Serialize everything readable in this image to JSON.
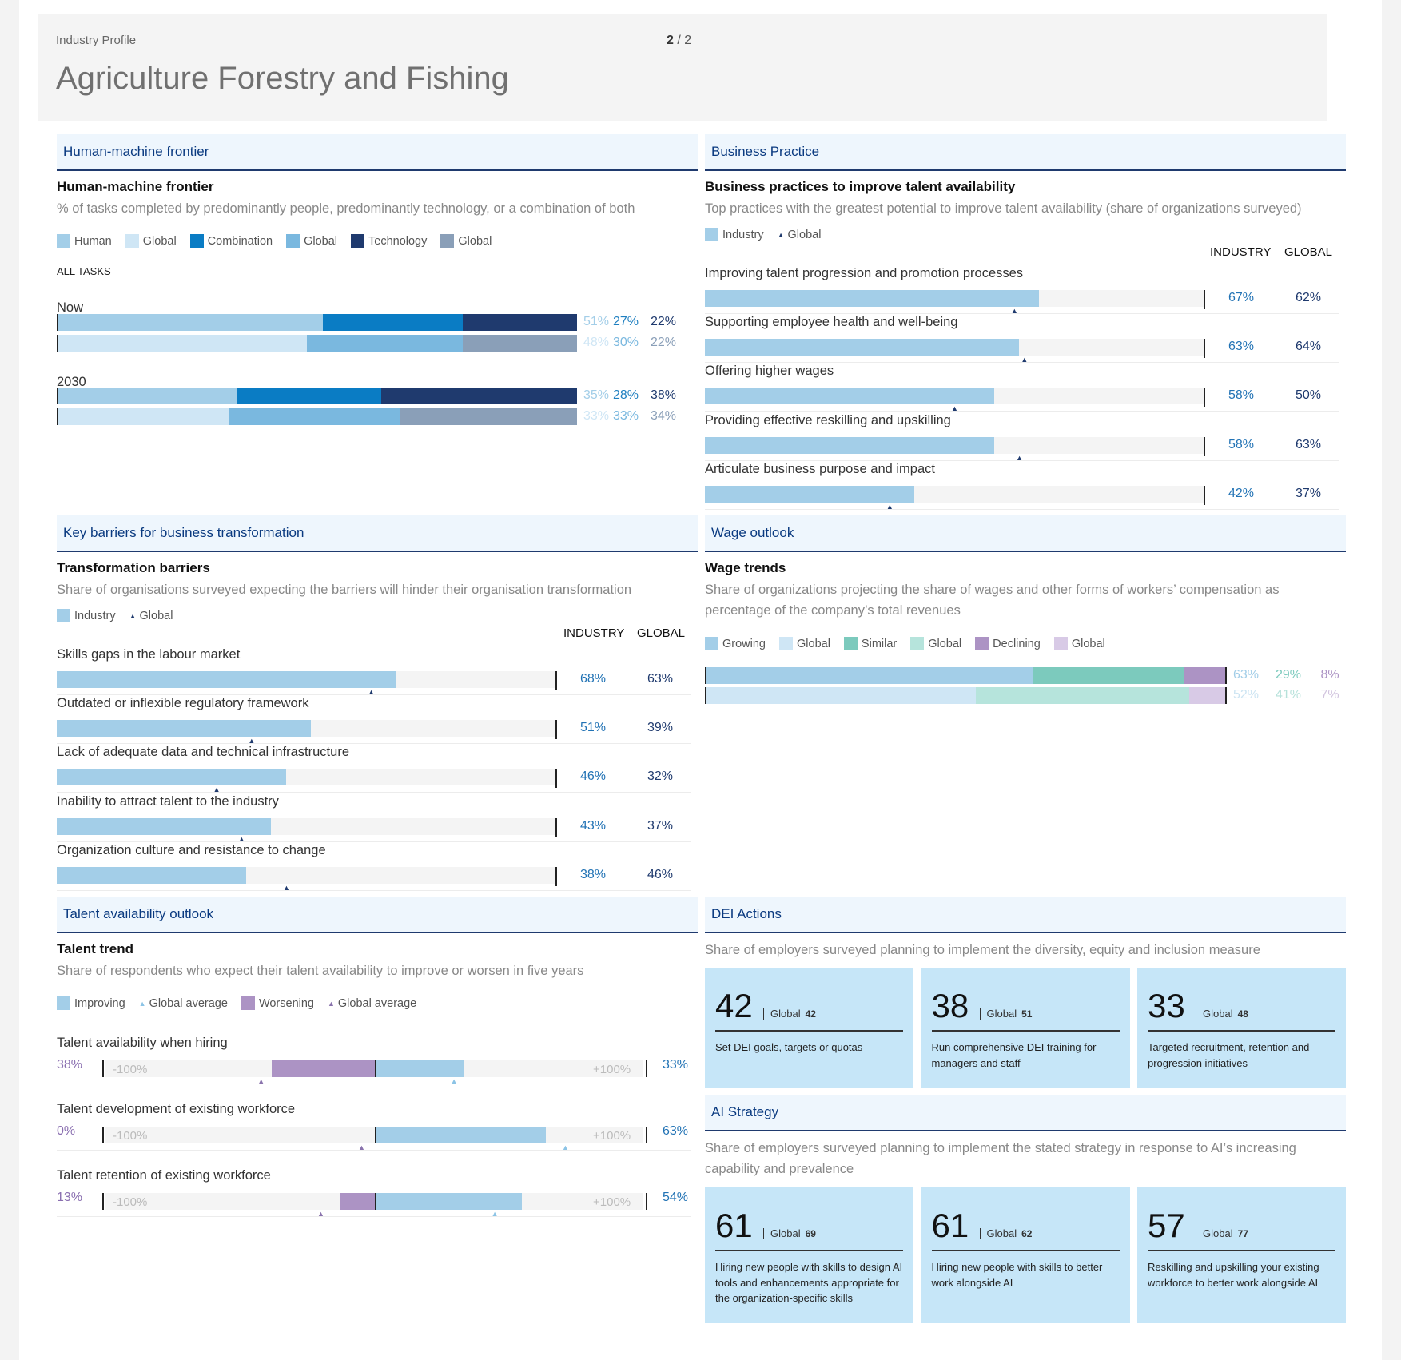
{
  "header": {
    "kicker": "Industry Profile",
    "page_current": "2",
    "page_sep": "/",
    "page_total": "2",
    "title": "Agriculture Forestry and Fishing"
  },
  "hmf": {
    "section": "Human-machine frontier",
    "title": "Human-machine frontier",
    "desc": "% of tasks completed by predominantly people, predominantly technology, or a combination of both",
    "legend": [
      "Human",
      "Global",
      "Combination",
      "Global",
      "Technology",
      "Global"
    ],
    "all_tasks": "ALL TASKS",
    "groups": [
      {
        "label": "Now",
        "industry": [
          51,
          27,
          22
        ],
        "global": [
          48,
          30,
          22
        ],
        "industry_labels": [
          "51%",
          "27%",
          "22%"
        ],
        "global_labels": [
          "48%",
          "30%",
          "22%"
        ]
      },
      {
        "label": "2030",
        "industry": [
          35,
          28,
          38
        ],
        "global": [
          33,
          33,
          34
        ],
        "industry_labels": [
          "35%",
          "28%",
          "38%"
        ],
        "global_labels": [
          "33%",
          "33%",
          "34%"
        ]
      }
    ]
  },
  "bp": {
    "section": "Business Practice",
    "title": "Business practices to improve talent availability",
    "desc": "Top practices with the greatest potential to improve talent availability (share of organizations surveyed)",
    "legend_industry": "Industry",
    "legend_global": "Global",
    "col_industry": "INDUSTRY",
    "col_global": "GLOBAL",
    "rows": [
      {
        "label": "Improving talent progression and promotion processes",
        "industry": 67,
        "global": 62,
        "industry_label": "67%",
        "global_label": "62%"
      },
      {
        "label": "Supporting employee health and well-being",
        "industry": 63,
        "global": 64,
        "industry_label": "63%",
        "global_label": "64%"
      },
      {
        "label": "Offering higher wages",
        "industry": 58,
        "global": 50,
        "industry_label": "58%",
        "global_label": "50%"
      },
      {
        "label": "Providing effective reskilling and upskilling",
        "industry": 58,
        "global": 63,
        "industry_label": "58%",
        "global_label": "63%"
      },
      {
        "label": "Articulate business purpose and impact",
        "industry": 42,
        "global": 37,
        "industry_label": "42%",
        "global_label": "37%"
      }
    ]
  },
  "kb": {
    "section": "Key barriers for business transformation",
    "title": "Transformation barriers",
    "desc": "Share of organisations surveyed expecting the barriers will hinder their organisation transformation",
    "legend_industry": "Industry",
    "legend_global": "Global",
    "col_industry": "INDUSTRY",
    "col_global": "GLOBAL",
    "rows": [
      {
        "label": "Skills gaps in the labour market",
        "industry": 68,
        "global": 63,
        "industry_label": "68%",
        "global_label": "63%"
      },
      {
        "label": "Outdated or inflexible regulatory framework",
        "industry": 51,
        "global": 39,
        "industry_label": "51%",
        "global_label": "39%"
      },
      {
        "label": "Lack of adequate data and technical infrastructure",
        "industry": 46,
        "global": 32,
        "industry_label": "46%",
        "global_label": "32%"
      },
      {
        "label": "Inability to attract talent to the industry",
        "industry": 43,
        "global": 37,
        "industry_label": "43%",
        "global_label": "37%"
      },
      {
        "label": "Organization culture and resistance to change",
        "industry": 38,
        "global": 46,
        "industry_label": "38%",
        "global_label": "46%"
      }
    ]
  },
  "wage": {
    "section": "Wage outlook",
    "title": "Wage trends",
    "desc": "Share of organizations projecting the share of wages and other forms of workers’ compensation as percentage of the company’s total revenues",
    "legend": [
      "Growing",
      "Global",
      "Similar",
      "Global",
      "Declining",
      "Global"
    ],
    "industry": [
      63,
      29,
      8
    ],
    "global": [
      52,
      41,
      7
    ],
    "industry_labels": [
      "63%",
      "29%",
      "8%"
    ],
    "global_labels": [
      "52%",
      "41%",
      "7%"
    ]
  },
  "tao": {
    "section": "Talent availability outlook",
    "title": "Talent trend",
    "desc": "Share of respondents who expect their talent availability to improve or worsen in five years",
    "legend": [
      "Improving",
      "Global average",
      "Worsening",
      "Global average"
    ],
    "axis_min": "-100%",
    "axis_max": "+100%",
    "rows": [
      {
        "label": "Talent availability when hiring",
        "worsening": 38,
        "improving": 33,
        "global_worsening": 42,
        "global_improving": 29,
        "worsening_label": "38%",
        "improving_label": "33%"
      },
      {
        "label": "Talent development of existing workforce",
        "worsening": 0,
        "improving": 63,
        "global_worsening": 5,
        "global_improving": 70,
        "worsening_label": "0%",
        "improving_label": "63%"
      },
      {
        "label": "Talent retention of existing workforce",
        "worsening": 13,
        "improving": 54,
        "global_worsening": 20,
        "global_improving": 44,
        "worsening_label": "13%",
        "improving_label": "54%"
      }
    ]
  },
  "dei": {
    "section": "DEI Actions",
    "desc": "Share of employers surveyed planning to implement the diversity, equity and inclusion measure",
    "global_word": "Global",
    "cards": [
      {
        "value": "42",
        "global": "42",
        "text": "Set DEI goals, targets or quotas"
      },
      {
        "value": "38",
        "global": "51",
        "text": "Run comprehensive DEI training for managers and staff"
      },
      {
        "value": "33",
        "global": "48",
        "text": "Targeted recruitment, retention and progression initiatives"
      }
    ]
  },
  "ai": {
    "section": "AI Strategy",
    "desc": "Share of employers surveyed planning to implement the stated strategy in response to AI’s increasing capability and prevalence",
    "global_word": "Global",
    "cards": [
      {
        "value": "61",
        "global": "69",
        "text": "Hiring new people with skills to design AI tools and enhancements appropriate for the organization-specific skills"
      },
      {
        "value": "61",
        "global": "62",
        "text": "Hiring new people with skills to better work alongside AI"
      },
      {
        "value": "57",
        "global": "77",
        "text": "Reskilling and upskilling your existing workforce to better work alongside AI"
      }
    ]
  },
  "colors": {
    "human": "#a3cee8",
    "human_g": "#cfe6f5",
    "comb": "#0a7cc4",
    "comb_g": "#7ab8df",
    "tech": "#1f3a6e",
    "tech_g": "#8a9fb8",
    "growing": "#a3cee8",
    "growing_g": "#cfe6f5",
    "similar": "#7ccabd",
    "similar_g": "#b6e4dc",
    "declining": "#ac93c4",
    "declining_g": "#d8cae6",
    "worse": "#ac93c4",
    "global_tri": "#1f3a6e"
  }
}
